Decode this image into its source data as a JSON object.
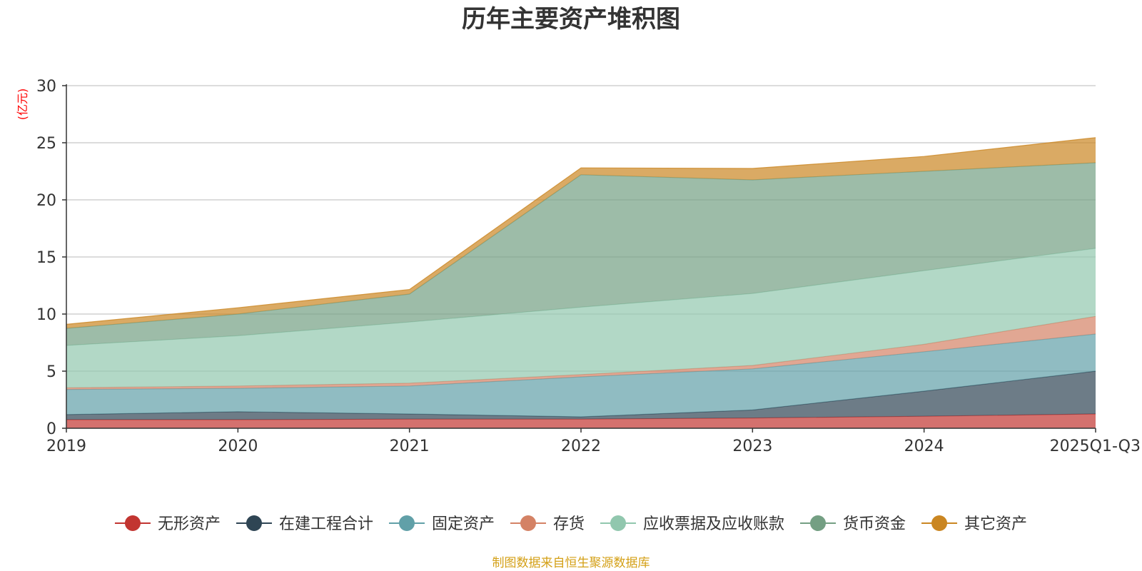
{
  "chart_data": {
    "type": "area",
    "stacked": true,
    "title": "历年主要资产堆积图",
    "ylabel": "(亿元)",
    "xlabel": "",
    "ylim": [
      0,
      30
    ],
    "yticks": [
      0,
      5,
      10,
      15,
      20,
      25,
      30
    ],
    "categories": [
      "2019",
      "2020",
      "2021",
      "2022",
      "2023",
      "2024",
      "2025Q1-Q3"
    ],
    "grid": true,
    "legend_position": "bottom",
    "series": [
      {
        "name": "无形资产",
        "color": "#c23531",
        "values": [
          0.75,
          0.75,
          0.8,
          0.8,
          0.9,
          1.05,
          1.25
        ]
      },
      {
        "name": "在建工程合计",
        "color": "#2f4554",
        "values": [
          0.45,
          0.7,
          0.45,
          0.2,
          0.7,
          2.2,
          3.75
        ]
      },
      {
        "name": "固定资产",
        "color": "#61a0a8",
        "values": [
          2.2,
          2.05,
          2.45,
          3.5,
          3.6,
          3.45,
          3.25
        ]
      },
      {
        "name": "存货",
        "color": "#d48265",
        "values": [
          0.15,
          0.2,
          0.25,
          0.2,
          0.3,
          0.65,
          1.55
        ]
      },
      {
        "name": "应收票据及应收账款",
        "color": "#91c7ae",
        "values": [
          3.7,
          4.4,
          5.35,
          5.9,
          6.3,
          6.45,
          5.95
        ]
      },
      {
        "name": "货币资金",
        "color": "#749f83",
        "values": [
          1.5,
          1.9,
          2.45,
          11.6,
          9.95,
          8.7,
          7.5
        ]
      },
      {
        "name": "其它资产",
        "color": "#ca8622",
        "values": [
          0.35,
          0.55,
          0.4,
          0.6,
          1.0,
          1.3,
          2.2
        ]
      }
    ]
  },
  "footer": {
    "source": "制图数据来自恒生聚源数据库"
  }
}
